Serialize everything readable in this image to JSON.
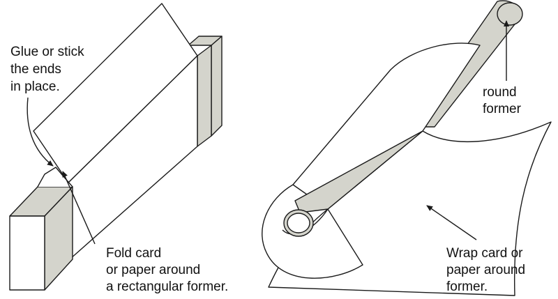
{
  "colors": {
    "stroke": "#1a1a1a",
    "former_fill": "#d4d4cc",
    "paper_fill": "#ffffff",
    "background": "#ffffff"
  },
  "left_diagram": {
    "glue_label": [
      "Glue or stick",
      "the ends",
      "in place."
    ],
    "fold_label": [
      "Fold card",
      "or paper  around",
      "a  rectangular former."
    ]
  },
  "right_diagram": {
    "round_label": [
      "round",
      "former"
    ],
    "wrap_label": [
      "Wrap card or",
      "paper  around",
      "former."
    ]
  }
}
